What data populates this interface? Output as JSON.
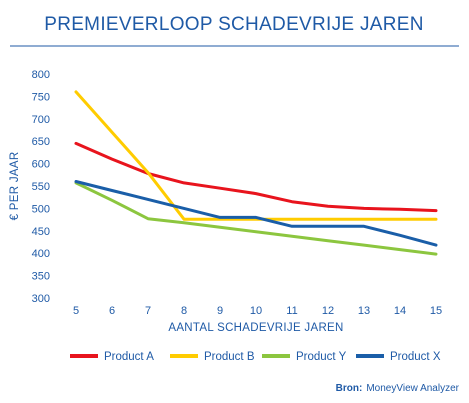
{
  "chart_data": {
    "type": "line",
    "title": "PREMIEVERLOOP SCHADEVRIJE JAREN",
    "xlabel": "AANTAL SCHADEVRIJE JAREN",
    "ylabel": "€ PER JAAR",
    "x": [
      5,
      6,
      7,
      8,
      9,
      10,
      11,
      12,
      13,
      14,
      15
    ],
    "xlim": [
      5,
      15
    ],
    "ylim": [
      300,
      800
    ],
    "yticks": [
      300,
      350,
      400,
      450,
      500,
      550,
      600,
      650,
      700,
      750,
      800
    ],
    "grid": false,
    "legend_position": "bottom",
    "series": [
      {
        "name": "Product A",
        "color": "#e8141d",
        "values": [
          645,
          610,
          578,
          557,
          545,
          533,
          515,
          505,
          500,
          498,
          495
        ]
      },
      {
        "name": "Product B",
        "color": "#ffcc00",
        "values": [
          760,
          670,
          580,
          476,
          476,
          476,
          476,
          476,
          476,
          476,
          476
        ]
      },
      {
        "name": "Product Y",
        "color": "#8cc63f",
        "values": [
          557,
          518,
          477,
          468,
          458,
          448,
          438,
          428,
          418,
          408,
          398
        ]
      },
      {
        "name": "Product X",
        "color": "#1a5ea8",
        "values": [
          560,
          540,
          520,
          500,
          480,
          480,
          460,
          460,
          460,
          440,
          418
        ]
      }
    ]
  },
  "source": {
    "label": "Bron:",
    "text": "MoneyView Analyzer"
  }
}
